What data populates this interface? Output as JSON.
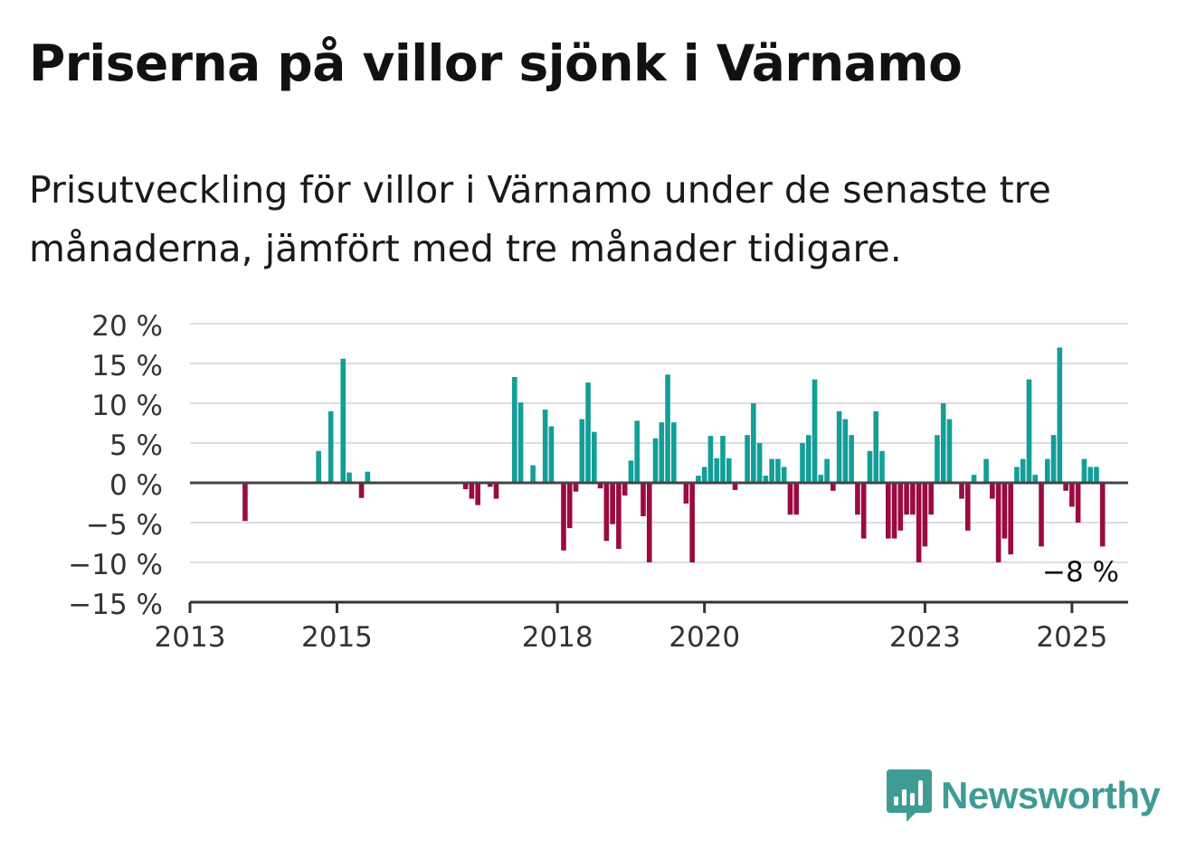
{
  "title": "Priserna på villor sjönk i Värnamo",
  "subtitle": "Prisutveckling för villor i Värnamo under de senaste tre månaderna, jämfört med tre månader tidigare.",
  "brand": {
    "name": "Newsworthy",
    "color": "#3f9c95"
  },
  "chart_data": {
    "type": "bar",
    "ylim": [
      -15,
      20
    ],
    "yticks": [
      {
        "value": 20,
        "label": "20 %"
      },
      {
        "value": 15,
        "label": "15 %"
      },
      {
        "value": 10,
        "label": "10 %"
      },
      {
        "value": 5,
        "label": "5 %"
      },
      {
        "value": 0,
        "label": "0 %"
      },
      {
        "value": -5,
        "label": "−5 %"
      },
      {
        "value": -10,
        "label": "−10 %"
      },
      {
        "value": -15,
        "label": "−15 %"
      }
    ],
    "xlim": [
      "2013-01",
      "2025-08"
    ],
    "xticks": [
      {
        "date": "2013-01",
        "label": "2013"
      },
      {
        "date": "2015-01",
        "label": "2015"
      },
      {
        "date": "2018-01",
        "label": "2018"
      },
      {
        "date": "2020-01",
        "label": "2020"
      },
      {
        "date": "2023-01",
        "label": "2023"
      },
      {
        "date": "2025-01",
        "label": "2025"
      }
    ],
    "grid": true,
    "colors": {
      "positive": "#139e97",
      "negative": "#9b0a40",
      "grid": "#dddddd",
      "zero_line": "#444444",
      "axis": "#333333"
    },
    "annotation": {
      "text": "−8 %",
      "date": "2025-02",
      "value": -8
    },
    "points": [
      [
        "2013-10",
        -4.8
      ],
      [
        "2014-10",
        4.0
      ],
      [
        "2014-12",
        9.0
      ],
      [
        "2015-02",
        15.6
      ],
      [
        "2015-03",
        1.3
      ],
      [
        "2015-05",
        -1.9
      ],
      [
        "2015-06",
        1.4
      ],
      [
        "2016-10",
        -0.8
      ],
      [
        "2016-11",
        -2.0
      ],
      [
        "2016-12",
        -2.8
      ],
      [
        "2017-02",
        -0.5
      ],
      [
        "2017-03",
        -2.0
      ],
      [
        "2017-06",
        13.3
      ],
      [
        "2017-07",
        10.1
      ],
      [
        "2017-09",
        2.2
      ],
      [
        "2017-11",
        9.2
      ],
      [
        "2017-12",
        7.1
      ],
      [
        "2018-02",
        -8.5
      ],
      [
        "2018-03",
        -5.7
      ],
      [
        "2018-04",
        -1.1
      ],
      [
        "2018-05",
        8.0
      ],
      [
        "2018-06",
        12.6
      ],
      [
        "2018-07",
        6.4
      ],
      [
        "2018-08",
        -0.7
      ],
      [
        "2018-09",
        -7.3
      ],
      [
        "2018-10",
        -5.2
      ],
      [
        "2018-11",
        -8.3
      ],
      [
        "2018-12",
        -1.6
      ],
      [
        "2019-01",
        2.8
      ],
      [
        "2019-02",
        7.8
      ],
      [
        "2019-03",
        -4.2
      ],
      [
        "2019-04",
        -10.0
      ],
      [
        "2019-05",
        5.6
      ],
      [
        "2019-06",
        7.6
      ],
      [
        "2019-07",
        13.6
      ],
      [
        "2019-08",
        7.6
      ],
      [
        "2019-10",
        -2.6
      ],
      [
        "2019-11",
        -10.0
      ],
      [
        "2019-12",
        0.9
      ],
      [
        "2020-01",
        2.0
      ],
      [
        "2020-02",
        5.9
      ],
      [
        "2020-03",
        3.1
      ],
      [
        "2020-04",
        5.9
      ],
      [
        "2020-05",
        3.1
      ],
      [
        "2020-06",
        -0.9
      ],
      [
        "2020-08",
        6.0
      ],
      [
        "2020-09",
        10.0
      ],
      [
        "2020-10",
        5.0
      ],
      [
        "2020-11",
        0.9
      ],
      [
        "2020-12",
        3.0
      ],
      [
        "2021-01",
        3.0
      ],
      [
        "2021-02",
        2.0
      ],
      [
        "2021-03",
        -4.0
      ],
      [
        "2021-04",
        -4.0
      ],
      [
        "2021-05",
        5.0
      ],
      [
        "2021-06",
        6.0
      ],
      [
        "2021-07",
        13.0
      ],
      [
        "2021-08",
        1.0
      ],
      [
        "2021-09",
        3.0
      ],
      [
        "2021-10",
        -1.0
      ],
      [
        "2021-11",
        9.0
      ],
      [
        "2021-12",
        8.0
      ],
      [
        "2022-01",
        6.0
      ],
      [
        "2022-02",
        -4.0
      ],
      [
        "2022-03",
        -7.0
      ],
      [
        "2022-04",
        4.0
      ],
      [
        "2022-05",
        9.0
      ],
      [
        "2022-06",
        4.0
      ],
      [
        "2022-07",
        -7.0
      ],
      [
        "2022-08",
        -7.0
      ],
      [
        "2022-09",
        -6.0
      ],
      [
        "2022-10",
        -4.0
      ],
      [
        "2022-11",
        -4.0
      ],
      [
        "2022-12",
        -10.0
      ],
      [
        "2023-01",
        -8.0
      ],
      [
        "2023-02",
        -4.0
      ],
      [
        "2023-03",
        6.0
      ],
      [
        "2023-04",
        10.0
      ],
      [
        "2023-05",
        8.0
      ],
      [
        "2023-07",
        -2.0
      ],
      [
        "2023-08",
        -6.0
      ],
      [
        "2023-09",
        1.0
      ],
      [
        "2023-11",
        3.0
      ],
      [
        "2023-12",
        -2.0
      ],
      [
        "2024-01",
        -10.0
      ],
      [
        "2024-02",
        -7.0
      ],
      [
        "2024-03",
        -9.0
      ],
      [
        "2024-04",
        2.0
      ],
      [
        "2024-05",
        3.0
      ],
      [
        "2024-06",
        13.0
      ],
      [
        "2024-07",
        1.0
      ],
      [
        "2024-08",
        -8.0
      ],
      [
        "2024-09",
        3.0
      ],
      [
        "2024-10",
        6.0
      ],
      [
        "2024-11",
        17.0
      ],
      [
        "2024-12",
        -1.0
      ],
      [
        "2025-01",
        -3.0
      ],
      [
        "2025-02",
        -5.0
      ],
      [
        "2025-03",
        3.0
      ],
      [
        "2025-04",
        2.0
      ],
      [
        "2025-05",
        2.0
      ],
      [
        "2025-06",
        -8.0
      ]
    ]
  }
}
